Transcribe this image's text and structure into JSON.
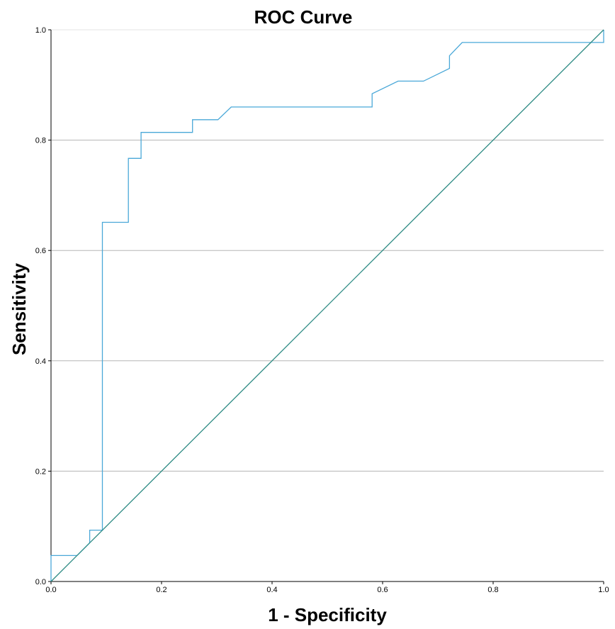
{
  "chart_data": {
    "type": "line",
    "title": "ROC Curve",
    "xlabel": "1 - Specificity",
    "ylabel": "Sensitivity",
    "xlim": [
      0,
      1
    ],
    "ylim": [
      0,
      1
    ],
    "x_ticks": [
      "0.0",
      "0.2",
      "0.4",
      "0.6",
      "0.8",
      "1.0"
    ],
    "y_ticks": [
      "0.0",
      "0.2",
      "0.4",
      "0.6",
      "0.8",
      "1.0"
    ],
    "grid": "horizontal",
    "series": [
      {
        "color": "#4aa8d8",
        "points": [
          [
            0.0,
            0.0
          ],
          [
            0.0,
            0.047
          ],
          [
            0.047,
            0.047
          ],
          [
            0.07,
            0.07
          ],
          [
            0.07,
            0.093
          ],
          [
            0.093,
            0.093
          ],
          [
            0.093,
            0.651
          ],
          [
            0.14,
            0.651
          ],
          [
            0.14,
            0.767
          ],
          [
            0.163,
            0.767
          ],
          [
            0.163,
            0.814
          ],
          [
            0.256,
            0.814
          ],
          [
            0.256,
            0.837
          ],
          [
            0.302,
            0.837
          ],
          [
            0.326,
            0.86
          ],
          [
            0.581,
            0.86
          ],
          [
            0.581,
            0.884
          ],
          [
            0.628,
            0.907
          ],
          [
            0.674,
            0.907
          ],
          [
            0.721,
            0.93
          ],
          [
            0.721,
            0.953
          ],
          [
            0.744,
            0.977
          ],
          [
            0.977,
            0.977
          ],
          [
            1.0,
            0.977
          ],
          [
            1.0,
            1.0
          ]
        ]
      },
      {
        "color": "#2e8b84",
        "points": [
          [
            0,
            0
          ],
          [
            1,
            1
          ]
        ]
      }
    ]
  }
}
